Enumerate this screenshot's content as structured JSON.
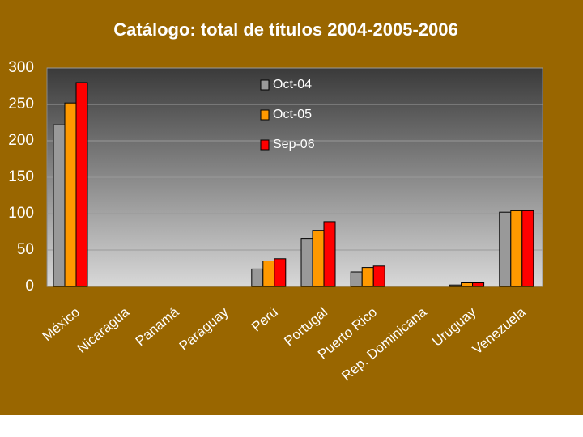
{
  "chart_data": {
    "type": "bar",
    "title": "Catálogo: total de títulos 2004-2005-2006",
    "categories": [
      "México",
      "Nicaragua",
      "Panamá",
      "Paraguay",
      "Perú",
      "Portugal",
      "Puerto Rico",
      "Rep. Dominicana",
      "Uruguay",
      "Venezuela"
    ],
    "series": [
      {
        "name": "Oct-04",
        "color": "#999999",
        "values": [
          222,
          0,
          0,
          0,
          24,
          66,
          20,
          0,
          2,
          102
        ]
      },
      {
        "name": "Oct-05",
        "color": "#ff9900",
        "values": [
          252,
          0,
          0,
          0,
          35,
          77,
          26,
          0,
          5,
          104
        ]
      },
      {
        "name": "Sep-06",
        "color": "#ff0000",
        "values": [
          280,
          0,
          0,
          0,
          38,
          89,
          28,
          0,
          5,
          104
        ]
      }
    ],
    "ylim": [
      0,
      300
    ],
    "yticks": [
      0,
      50,
      100,
      150,
      200,
      250,
      300
    ],
    "grid": true
  }
}
